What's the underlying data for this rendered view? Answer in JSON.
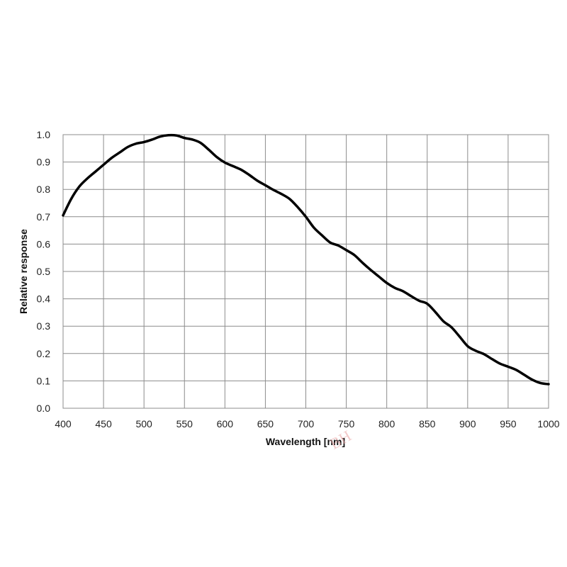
{
  "chart_data": {
    "type": "line",
    "xlabel": "Wavelength [nm]",
    "ylabel": "Relative response",
    "xlim": [
      400,
      1000
    ],
    "ylim": [
      0,
      1.0
    ],
    "xticks": [
      400,
      450,
      500,
      550,
      600,
      650,
      700,
      750,
      800,
      850,
      900,
      950,
      1000
    ],
    "yticks": [
      "0.0",
      "0.1",
      "0.2",
      "0.3",
      "0.4",
      "0.5",
      "0.6",
      "0.7",
      "0.8",
      "0.9",
      "1.0"
    ],
    "grid": true,
    "series": [
      {
        "color": "#000000",
        "x": [
          400,
          410,
          420,
          430,
          440,
          450,
          460,
          470,
          480,
          490,
          500,
          510,
          520,
          530,
          540,
          550,
          560,
          570,
          580,
          590,
          600,
          610,
          620,
          630,
          640,
          650,
          660,
          670,
          680,
          690,
          700,
          710,
          720,
          730,
          740,
          750,
          760,
          770,
          780,
          790,
          800,
          810,
          820,
          830,
          840,
          850,
          860,
          870,
          880,
          890,
          900,
          910,
          920,
          930,
          940,
          950,
          960,
          970,
          980,
          990,
          1000
        ],
        "y": [
          0.705,
          0.765,
          0.81,
          0.84,
          0.865,
          0.89,
          0.915,
          0.935,
          0.955,
          0.967,
          0.973,
          0.982,
          0.993,
          0.998,
          0.997,
          0.988,
          0.982,
          0.97,
          0.945,
          0.918,
          0.898,
          0.885,
          0.872,
          0.853,
          0.832,
          0.815,
          0.798,
          0.783,
          0.765,
          0.735,
          0.7,
          0.66,
          0.632,
          0.606,
          0.595,
          0.578,
          0.56,
          0.532,
          0.506,
          0.482,
          0.458,
          0.44,
          0.428,
          0.41,
          0.393,
          0.382,
          0.352,
          0.318,
          0.296,
          0.262,
          0.227,
          0.21,
          0.198,
          0.18,
          0.163,
          0.152,
          0.14,
          0.122,
          0.104,
          0.092,
          0.088
        ]
      }
    ]
  },
  "watermark": "BH"
}
